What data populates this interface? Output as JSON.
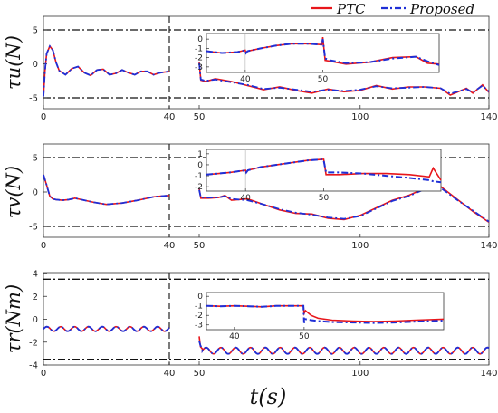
{
  "figure": {
    "xlabel": "t(s)",
    "legend": {
      "placement": "top-right",
      "items": [
        {
          "name": "PTC",
          "color": "#e8161b",
          "style": "solid"
        },
        {
          "name": "Proposed",
          "color": "#1f2fd6",
          "style": "dash-dot"
        }
      ]
    }
  },
  "chart_data": [
    {
      "id": "tau_u",
      "type": "line",
      "ylabel": "τu(N)",
      "x_axis": "broken at 40-50",
      "x_ticks": [
        "0",
        "40",
        "50",
        "100",
        "140"
      ],
      "y_ticks": [
        "-5",
        "0",
        "5"
      ],
      "ylim": [
        -6,
        6
      ],
      "bound_lines": [
        5,
        -5
      ],
      "vline": 40,
      "series": [
        {
          "name": "PTC",
          "x": [
            0,
            0.5,
            1,
            2,
            3,
            4,
            5,
            7,
            9,
            11,
            13,
            15,
            17,
            19,
            21,
            23,
            25,
            27,
            29,
            31,
            33,
            35,
            37,
            40,
            50,
            50.5,
            52,
            55,
            60,
            65,
            70,
            75,
            80,
            85,
            90,
            95,
            100,
            105,
            110,
            115,
            120,
            125,
            128,
            130,
            133,
            135,
            138,
            140
          ],
          "y": [
            -4.8,
            -1,
            1.5,
            2.6,
            2,
            0.2,
            -1,
            -1.6,
            -0.7,
            -0.4,
            -1.3,
            -1.7,
            -0.9,
            -0.8,
            -1.6,
            -1.4,
            -0.9,
            -1.3,
            -1.6,
            -1.1,
            -1.1,
            -1.6,
            -1.3,
            -1.1,
            0.2,
            -2.4,
            -2.6,
            -2.2,
            -2.6,
            -3.2,
            -3.8,
            -3.4,
            -3.9,
            -4.3,
            -3.7,
            -4.1,
            -3.9,
            -3.2,
            -3.7,
            -3.4,
            -3.4,
            -3.6,
            -4.6,
            -4.2,
            -3.6,
            -4.3,
            -3.1,
            -4.2
          ]
        },
        {
          "name": "Proposed",
          "x": [
            0,
            0.5,
            1,
            2,
            3,
            4,
            5,
            7,
            9,
            11,
            13,
            15,
            17,
            19,
            21,
            23,
            25,
            27,
            29,
            31,
            33,
            35,
            37,
            40,
            50,
            50.5,
            52,
            55,
            60,
            65,
            70,
            75,
            80,
            85,
            90,
            95,
            100,
            105,
            110,
            115,
            120,
            125,
            128,
            130,
            133,
            135,
            138,
            140
          ],
          "y": [
            -4.8,
            -1,
            1.5,
            2.6,
            2,
            0.2,
            -1,
            -1.6,
            -0.7,
            -0.4,
            -1.3,
            -1.7,
            -0.9,
            -0.8,
            -1.6,
            -1.4,
            -0.9,
            -1.3,
            -1.6,
            -1.1,
            -1.1,
            -1.6,
            -1.3,
            -1.1,
            0.1,
            -2.3,
            -2.5,
            -2.3,
            -2.7,
            -3.1,
            -3.7,
            -3.5,
            -3.8,
            -4.1,
            -3.8,
            -4,
            -3.8,
            -3.3,
            -3.6,
            -3.5,
            -3.4,
            -3.6,
            -4.4,
            -4.1,
            -3.7,
            -4.2,
            -3.2,
            -4.1
          ]
        }
      ],
      "inset": {
        "x_ticks": [
          "40",
          "50"
        ],
        "y_ticks": [
          "0",
          "-1",
          "-2",
          "-3"
        ],
        "xlim": [
          35,
          65
        ],
        "ylim": [
          -3.6,
          0.6
        ],
        "gridline_x": 40,
        "series": [
          {
            "name": "PTC",
            "x": [
              35,
              37,
              39,
              40,
              40.1,
              40.3,
              42,
              44,
              46,
              48,
              49.9,
              50,
              50.3,
              51,
              53,
              56,
              59,
              62,
              63.5,
              65
            ],
            "y": [
              -1.3,
              -1.5,
              -1.4,
              -1.2,
              -1.5,
              -1.3,
              -1,
              -0.7,
              -0.5,
              -0.5,
              -0.6,
              0.2,
              -2.3,
              -2.4,
              -2.7,
              -2.5,
              -2,
              -1.9,
              -2.6,
              -2.7
            ]
          },
          {
            "name": "Proposed",
            "x": [
              35,
              37,
              39,
              40,
              40.1,
              40.3,
              42,
              44,
              46,
              48,
              49.9,
              50,
              50.3,
              51,
              53,
              56,
              59,
              62,
              63.5,
              65
            ],
            "y": [
              -1.3,
              -1.5,
              -1.4,
              -1.2,
              -1.5,
              -1.3,
              -1,
              -0.7,
              -0.5,
              -0.5,
              -0.6,
              0,
              -2.1,
              -2.3,
              -2.6,
              -2.5,
              -2.1,
              -1.9,
              -2.4,
              -2.8
            ]
          }
        ]
      }
    },
    {
      "id": "tau_v",
      "type": "line",
      "ylabel": "τv(N)",
      "x_axis": "broken at 40-50",
      "x_ticks": [
        "0",
        "40",
        "50",
        "100",
        "140"
      ],
      "y_ticks": [
        "-5",
        "0",
        "5"
      ],
      "ylim": [
        -6,
        6
      ],
      "bound_lines": [
        5,
        -5
      ],
      "vline": 40,
      "series": [
        {
          "name": "PTC",
          "x": [
            0,
            1,
            2,
            3,
            4,
            6,
            8,
            10,
            13,
            16,
            20,
            25,
            30,
            35,
            40,
            50,
            50.5,
            53,
            56,
            58,
            60,
            65,
            70,
            75,
            80,
            85,
            90,
            95,
            100,
            105,
            110,
            115,
            120,
            125,
            130,
            135,
            140
          ],
          "y": [
            2.5,
            1,
            -0.6,
            -1,
            -1.1,
            -1.2,
            -1.1,
            -0.9,
            -1.2,
            -1.5,
            -1.8,
            -1.6,
            -1.2,
            -0.7,
            -0.5,
            0.5,
            -0.9,
            -0.9,
            -0.8,
            -0.5,
            -1.2,
            -1,
            -1.8,
            -2.6,
            -3.1,
            -3.2,
            -3.8,
            -4,
            -3.4,
            -2.3,
            -1.2,
            -0.5,
            0.5,
            0.8,
            -1,
            -2.8,
            -4.4
          ]
        },
        {
          "name": "Proposed",
          "x": [
            0,
            1,
            2,
            3,
            4,
            6,
            8,
            10,
            13,
            16,
            20,
            25,
            30,
            35,
            40,
            50,
            50.5,
            53,
            56,
            58,
            60,
            65,
            70,
            75,
            80,
            85,
            90,
            95,
            100,
            105,
            110,
            115,
            120,
            125,
            130,
            135,
            140
          ],
          "y": [
            2.5,
            1,
            -0.6,
            -1,
            -1.1,
            -1.2,
            -1.1,
            -0.9,
            -1.2,
            -1.5,
            -1.8,
            -1.6,
            -1.2,
            -0.7,
            -0.5,
            0.3,
            -0.8,
            -0.8,
            -0.8,
            -0.6,
            -1,
            -1.2,
            -1.8,
            -2.5,
            -3,
            -3.3,
            -3.7,
            -3.9,
            -3.5,
            -2.4,
            -1.3,
            -0.6,
            0.4,
            0.6,
            -1.1,
            -2.7,
            -4.3
          ]
        }
      ],
      "inset": {
        "x_ticks": [
          "40",
          "50"
        ],
        "y_ticks": [
          "1",
          "0",
          "-1",
          "-2"
        ],
        "xlim": [
          35,
          65
        ],
        "ylim": [
          -2.4,
          1.4
        ],
        "gridline_x": 40,
        "series": [
          {
            "name": "PTC",
            "x": [
              35,
              38,
              40,
              40.1,
              40.3,
              42,
              45,
              48,
              49.9,
              50,
              50.3,
              52,
              55,
              58,
              61,
              63.5,
              64,
              65
            ],
            "y": [
              -0.9,
              -0.7,
              -0.5,
              -0.7,
              -0.5,
              -0.2,
              0.1,
              0.4,
              0.5,
              0.5,
              -0.9,
              -0.9,
              -0.8,
              -0.8,
              -0.9,
              -1.1,
              -0.3,
              -1.4
            ]
          },
          {
            "name": "Proposed",
            "x": [
              35,
              38,
              40,
              40.1,
              40.3,
              42,
              45,
              48,
              49.9,
              50,
              50.3,
              52,
              55,
              58,
              61,
              63.5,
              64,
              65
            ],
            "y": [
              -0.9,
              -0.7,
              -0.5,
              -0.7,
              -0.5,
              -0.2,
              0.1,
              0.4,
              0.5,
              0.4,
              -0.7,
              -0.7,
              -0.8,
              -1,
              -1.2,
              -1.4,
              -1.5,
              -1.6
            ]
          }
        ]
      }
    },
    {
      "id": "tau_r",
      "type": "line",
      "ylabel": "τr(Nm)",
      "x_axis": "broken at 40-50",
      "x_ticks": [
        "0",
        "40",
        "50",
        "100",
        "140"
      ],
      "y_ticks": [
        "-4",
        "-2",
        "0",
        "2",
        "4"
      ],
      "ylim": [
        -4,
        4
      ],
      "bound_lines": [
        3.5,
        -3.5
      ],
      "vline": 40,
      "series": [
        {
          "name": "PTC",
          "wave": {
            "x0": 0,
            "x1": 40,
            "base": -0.85,
            "amp": 0.2,
            "period": 4.4
          },
          "x": [
            50,
            50.4,
            51
          ],
          "y": [
            -1.5,
            -2.4,
            -2.6
          ],
          "wave2": {
            "x0": 51,
            "x1": 140,
            "base": -2.75,
            "amp": 0.28,
            "period": 4.6
          }
        },
        {
          "name": "Proposed",
          "wave": {
            "x0": 0,
            "x1": 40,
            "base": -0.85,
            "amp": 0.2,
            "period": 4.4
          },
          "x": [
            50,
            50.4,
            51
          ],
          "y": [
            -1.9,
            -2.3,
            -2.6
          ],
          "wave2": {
            "x0": 51,
            "x1": 140,
            "base": -2.75,
            "amp": 0.28,
            "period": 4.6
          }
        }
      ],
      "inset": {
        "x_ticks": [
          "40",
          "50"
        ],
        "y_ticks": [
          "0",
          "-1",
          "-2",
          "-3"
        ],
        "xlim": [
          36,
          70
        ],
        "ylim": [
          -3.5,
          0.4
        ],
        "series": [
          {
            "name": "PTC",
            "x": [
              36,
              38,
              40,
              42,
              44,
              46,
              48,
              49.9,
              50,
              50.2,
              51,
              52,
              54,
              57,
              60,
              63,
              66,
              70
            ],
            "y": [
              -1,
              -1.05,
              -1,
              -1.05,
              -1.1,
              -1,
              -1,
              -1,
              -1.8,
              -1.5,
              -2,
              -2.3,
              -2.5,
              -2.6,
              -2.65,
              -2.6,
              -2.5,
              -2.4
            ]
          },
          {
            "name": "Proposed",
            "x": [
              36,
              38,
              40,
              42,
              44,
              46,
              48,
              49.9,
              50,
              50.2,
              51,
              52,
              54,
              57,
              60,
              63,
              66,
              70
            ],
            "y": [
              -1,
              -1.05,
              -1,
              -1.05,
              -1.1,
              -1,
              -1,
              -1,
              -2.8,
              -2.4,
              -2.5,
              -2.6,
              -2.7,
              -2.75,
              -2.8,
              -2.75,
              -2.65,
              -2.55
            ]
          }
        ]
      }
    }
  ]
}
